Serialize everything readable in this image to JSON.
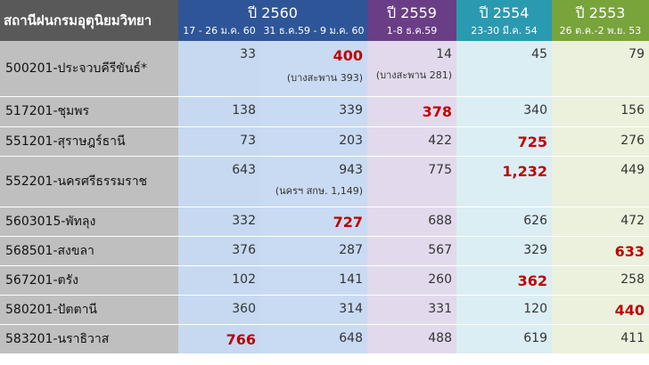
{
  "header": {
    "station_label": "สถานีฝนกรมอุตุนิยมวิทยา",
    "y2560": "ปี 2560",
    "y2560_d1": "17 - 26 ม.ค. 60",
    "y2560_d2": "31 ธ.ค.59 - 9 ม.ค. 60",
    "y2559": "ปี 2559",
    "y2559_d": "1-8 ธ.ค.59",
    "y2554": "ปี 2554",
    "y2554_d": "23-30 มี.ค. 54",
    "y2553": "ปี 2553",
    "y2553_d": "26 ต.ค.-2 พ.ย. 53"
  },
  "colors": {
    "highlight": "#c00000",
    "header_station": "#595959",
    "header_2560": "#2e5597",
    "header_2559": "#6a3e86",
    "header_2554": "#2a9ab0",
    "header_2553": "#79a33b"
  },
  "rows": [
    {
      "station": "500201-ประจวบคีรีขันธ์*",
      "v1": "33",
      "v2": "400",
      "v2_note": "(บางสะพาน 393)",
      "v3": "14",
      "v3_note": "(บางสะพาน 281)",
      "v4": "45",
      "v5": "79"
    },
    {
      "station": "517201-ชุมพร",
      "v1": "138",
      "v2": "339",
      "v3": "378",
      "v4": "340",
      "v5": "156"
    },
    {
      "station": "551201-สุราษฎร์ธานี",
      "v1": "73",
      "v2": "203",
      "v3": "422",
      "v4": "725",
      "v5": "276"
    },
    {
      "station": "552201-นครศรีธรรมราช",
      "v1": "643",
      "v2": "943",
      "v2_note": "(นครฯ สกษ. 1,149)",
      "v3": "775",
      "v4": "1,232",
      "v5": "449"
    },
    {
      "station": "5603015-พัทลุง",
      "v1": "332",
      "v2": "727",
      "v3": "688",
      "v4": "626",
      "v5": "472"
    },
    {
      "station": "568501-สงขลา",
      "v1": "376",
      "v2": "287",
      "v3": "567",
      "v4": "329",
      "v5": "633"
    },
    {
      "station": "567201-ตรัง",
      "v1": "102",
      "v2": "141",
      "v3": "260",
      "v4": "362",
      "v5": "258"
    },
    {
      "station": "580201-ปัตตานี",
      "v1": "360",
      "v2": "314",
      "v3": "331",
      "v4": "120",
      "v5": "440"
    },
    {
      "station": "583201-นราธิวาส",
      "v1": "766",
      "v2": "648",
      "v3": "488",
      "v4": "619",
      "v5": "411"
    }
  ]
}
